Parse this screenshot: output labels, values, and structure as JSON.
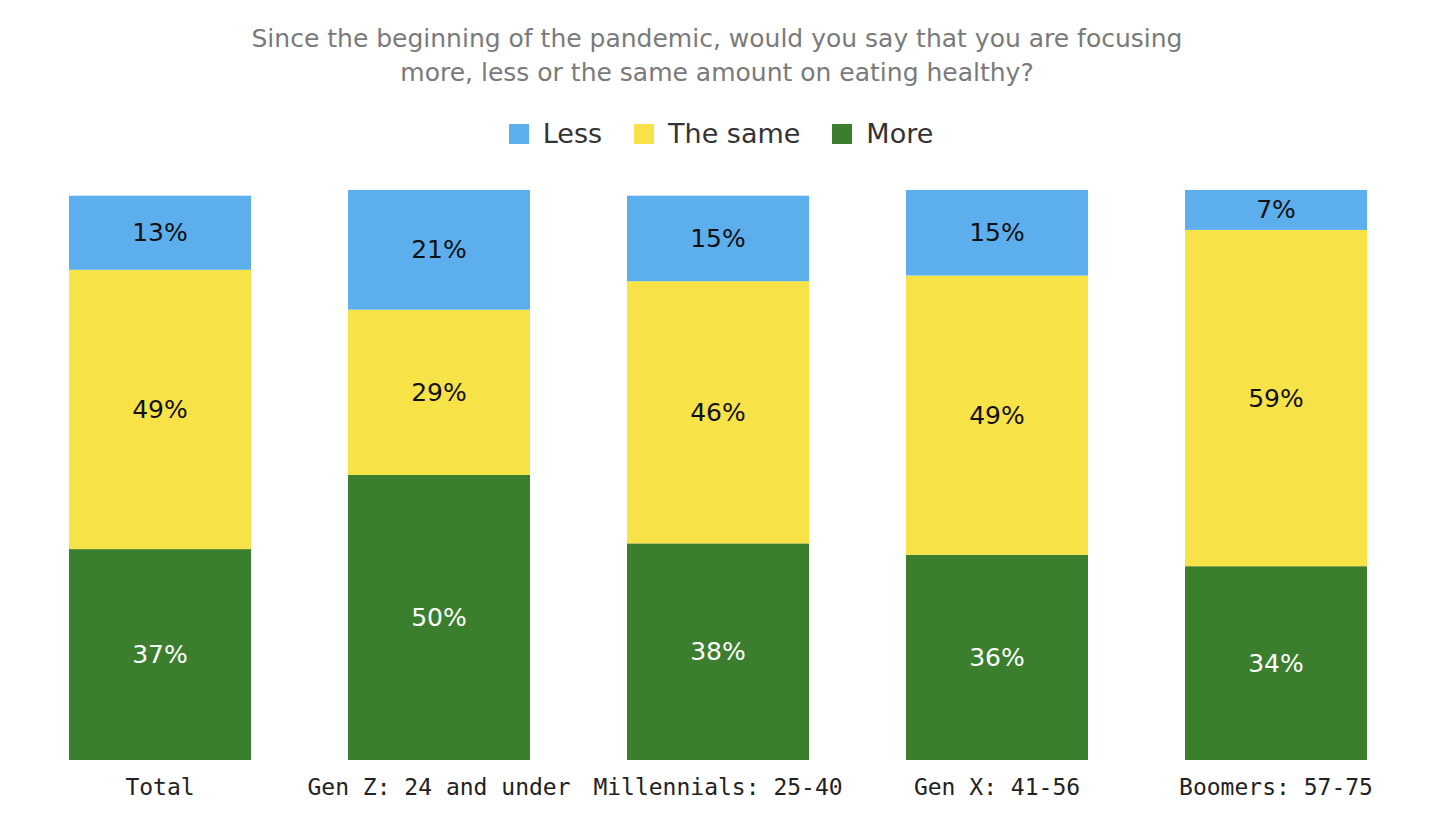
{
  "chart_data": {
    "type": "bar",
    "stacked": true,
    "data_labels": true,
    "tick_labels": "x",
    "grid": false,
    "legend": "top",
    "title": "Since the beginning of the pandemic, would you say that you are focusing more, less or the same amount on eating healthy?",
    "categories": [
      "Total",
      "Gen Z: 24 and under",
      "Millennials: 25-40",
      "Gen X: 41-56",
      "Boomers: 57-75"
    ],
    "ylim": [
      0,
      100
    ],
    "series": [
      {
        "name": "Less",
        "color": "#5daeed",
        "values": [
          13,
          21,
          15,
          15,
          7
        ],
        "value_labels": [
          "13%",
          "21%",
          "15%",
          "15%",
          "7%"
        ]
      },
      {
        "name": "The same",
        "color": "#f7e348",
        "values": [
          49,
          29,
          46,
          49,
          59
        ],
        "value_labels": [
          "49%",
          "29%",
          "46%",
          "49%",
          "59%"
        ]
      },
      {
        "name": "More",
        "color": "#3b7f2e",
        "values": [
          37,
          50,
          38,
          36,
          34
        ],
        "value_labels": [
          "37%",
          "50%",
          "38%",
          "36%",
          "34%"
        ]
      }
    ]
  }
}
